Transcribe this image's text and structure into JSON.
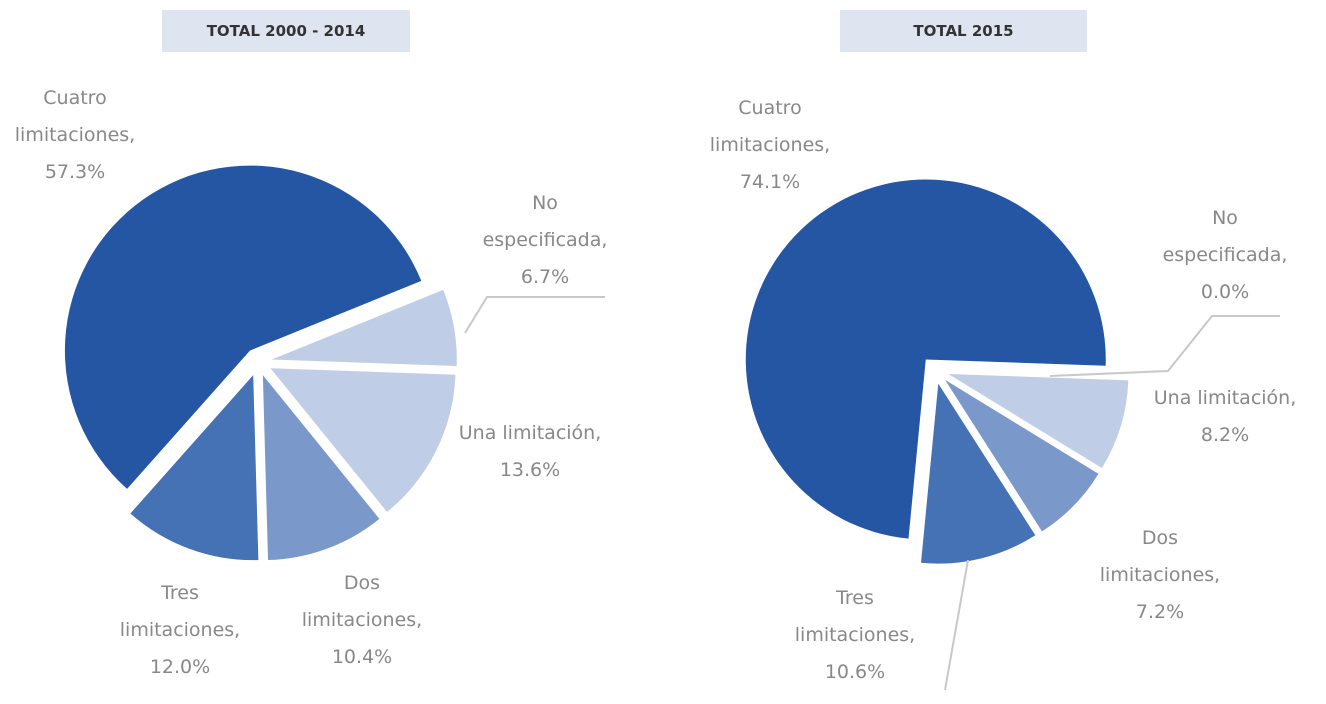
{
  "chart_data": [
    {
      "type": "pie",
      "title": "TOTAL 2000 - 2014",
      "categories": [
        "Una limitación,",
        "Dos limitaciones,",
        "Tres limitaciones,",
        "Cuatro limitaciones,",
        "No especificada,"
      ],
      "values": [
        13.6,
        10.4,
        12.0,
        57.3,
        6.7
      ],
      "value_labels": [
        "13.6%",
        "10.4%",
        "12.0%",
        "57.3%",
        "6.7%"
      ],
      "colors": [
        "#bfcde6",
        "#7a98c9",
        "#4472b4",
        "#2456a4",
        "#bfcde6"
      ]
    },
    {
      "type": "pie",
      "title": "TOTAL 2015",
      "categories": [
        "Una limitación,",
        "Dos limitaciones,",
        "Tres limitaciones,",
        "Cuatro limitaciones,",
        "No especificada,"
      ],
      "values": [
        8.2,
        7.2,
        10.6,
        74.1,
        0.0
      ],
      "value_labels": [
        "8.2%",
        "7.2%",
        "10.6%",
        "74.1%",
        "0.0%"
      ],
      "colors": [
        "#bfcde6",
        "#7a98c9",
        "#4472b4",
        "#2456a4",
        "#bfcde6"
      ]
    }
  ]
}
